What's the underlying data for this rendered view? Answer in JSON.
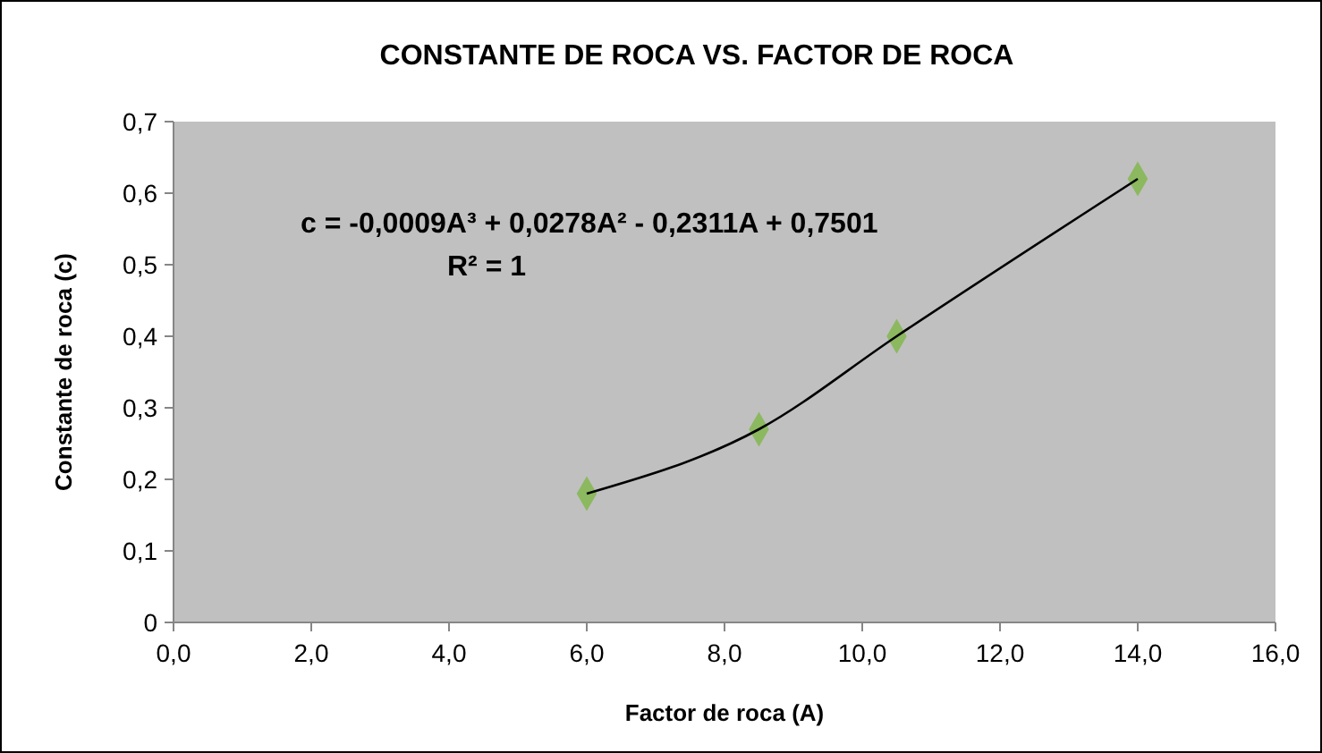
{
  "chart_data": {
    "type": "scatter",
    "title": "CONSTANTE DE ROCA VS. FACTOR DE ROCA",
    "xlabel": "Factor de roca (A)",
    "ylabel": "Constante de roca (c)",
    "x": [
      6,
      8.5,
      10.5,
      14
    ],
    "series": [
      {
        "color": "#8cb860",
        "values": [
          0.18,
          0.27,
          0.4,
          0.62
        ],
        "marker": "diamond"
      },
      {
        "type": "line",
        "color": "#000000",
        "x": [
          6,
          8.5,
          10.5,
          14
        ],
        "values": [
          0.18,
          0.27,
          0.4,
          0.62
        ],
        "marker": "none",
        "line_style": "solid"
      }
    ],
    "xlim": [
      0,
      16
    ],
    "xticks": [
      {
        "value": 0,
        "label": "0,0"
      },
      {
        "value": 2,
        "label": "2,0"
      },
      {
        "value": 4,
        "label": "4,0"
      },
      {
        "value": 6,
        "label": "6,0"
      },
      {
        "value": 8,
        "label": "8,0"
      },
      {
        "value": 10,
        "label": "10,0"
      },
      {
        "value": 12,
        "label": "12,0"
      },
      {
        "value": 14,
        "label": "14,0"
      },
      {
        "value": 16,
        "label": "16,0"
      }
    ],
    "ylim": [
      0,
      0.7
    ],
    "yticks": [
      0,
      {
        "value": 0.1,
        "label": "0,1"
      },
      {
        "value": 0.2,
        "label": "0,2"
      },
      {
        "value": 0.3,
        "label": "0,3"
      },
      {
        "value": 0.4,
        "label": "0,4"
      },
      {
        "value": 0.5,
        "label": "0,5"
      },
      {
        "value": 0.6,
        "label": "0,6"
      },
      {
        "value": 0.7,
        "label": "0,7"
      }
    ],
    "grid": false,
    "annotations": [
      "c = -0,0009A³ + 0,0278A² - 0,2311A + 0,7501",
      "R² = 1"
    ]
  }
}
